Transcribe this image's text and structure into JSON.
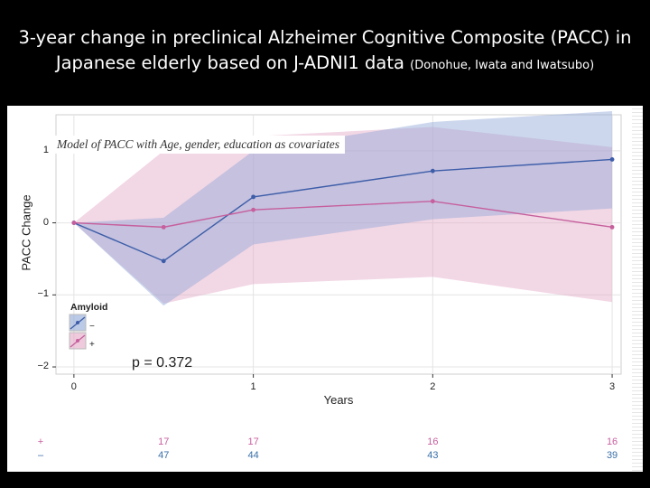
{
  "slide": {
    "title_main": "3-year change in preclinical Alzheimer Cognitive Composite (PACC) in Japanese elderly based on J-ADNI1 data",
    "title_sub": "(Donohue, Iwata and Iwatsubo)"
  },
  "chart_data": {
    "type": "line",
    "annotation": "Model of PACC with Age, gender, education as covariates",
    "xlabel": "Years",
    "ylabel": "PACC Change",
    "xlim": [
      -0.1,
      3.05
    ],
    "ylim": [
      -2.1,
      1.5
    ],
    "x_ticks": [
      "0",
      "1",
      "2",
      "3"
    ],
    "y_ticks": [
      "1",
      "0",
      "−1",
      "−2"
    ],
    "x": [
      0,
      0.5,
      1,
      2,
      3
    ],
    "grid": true,
    "legend_title": "Amyloid",
    "legend_position": "bottom-left",
    "p_value_text": "p = 0.372",
    "series": [
      {
        "name": "−",
        "color": "#3d5da8",
        "band_color": "#8ea6d6",
        "values": [
          0,
          -0.53,
          0.36,
          0.72,
          0.88
        ],
        "upper": [
          0,
          0.07,
          1.0,
          1.4,
          1.55
        ],
        "lower": [
          0,
          -1.15,
          -0.3,
          0.05,
          0.2
        ]
      },
      {
        "name": "+",
        "color": "#c65f9c",
        "band_color": "#e3a7c5",
        "values": [
          0,
          -0.06,
          0.18,
          0.3,
          -0.06
        ],
        "upper": [
          0,
          1.0,
          1.2,
          1.33,
          1.05
        ],
        "lower": [
          0,
          -1.12,
          -0.85,
          -0.75,
          -1.1
        ]
      }
    ],
    "at_risk": {
      "plus_label": "+",
      "minus_label": "–",
      "plus_counts": [
        "17",
        "17",
        "16",
        "16"
      ],
      "minus_counts": [
        "47",
        "44",
        "43",
        "39"
      ]
    }
  }
}
